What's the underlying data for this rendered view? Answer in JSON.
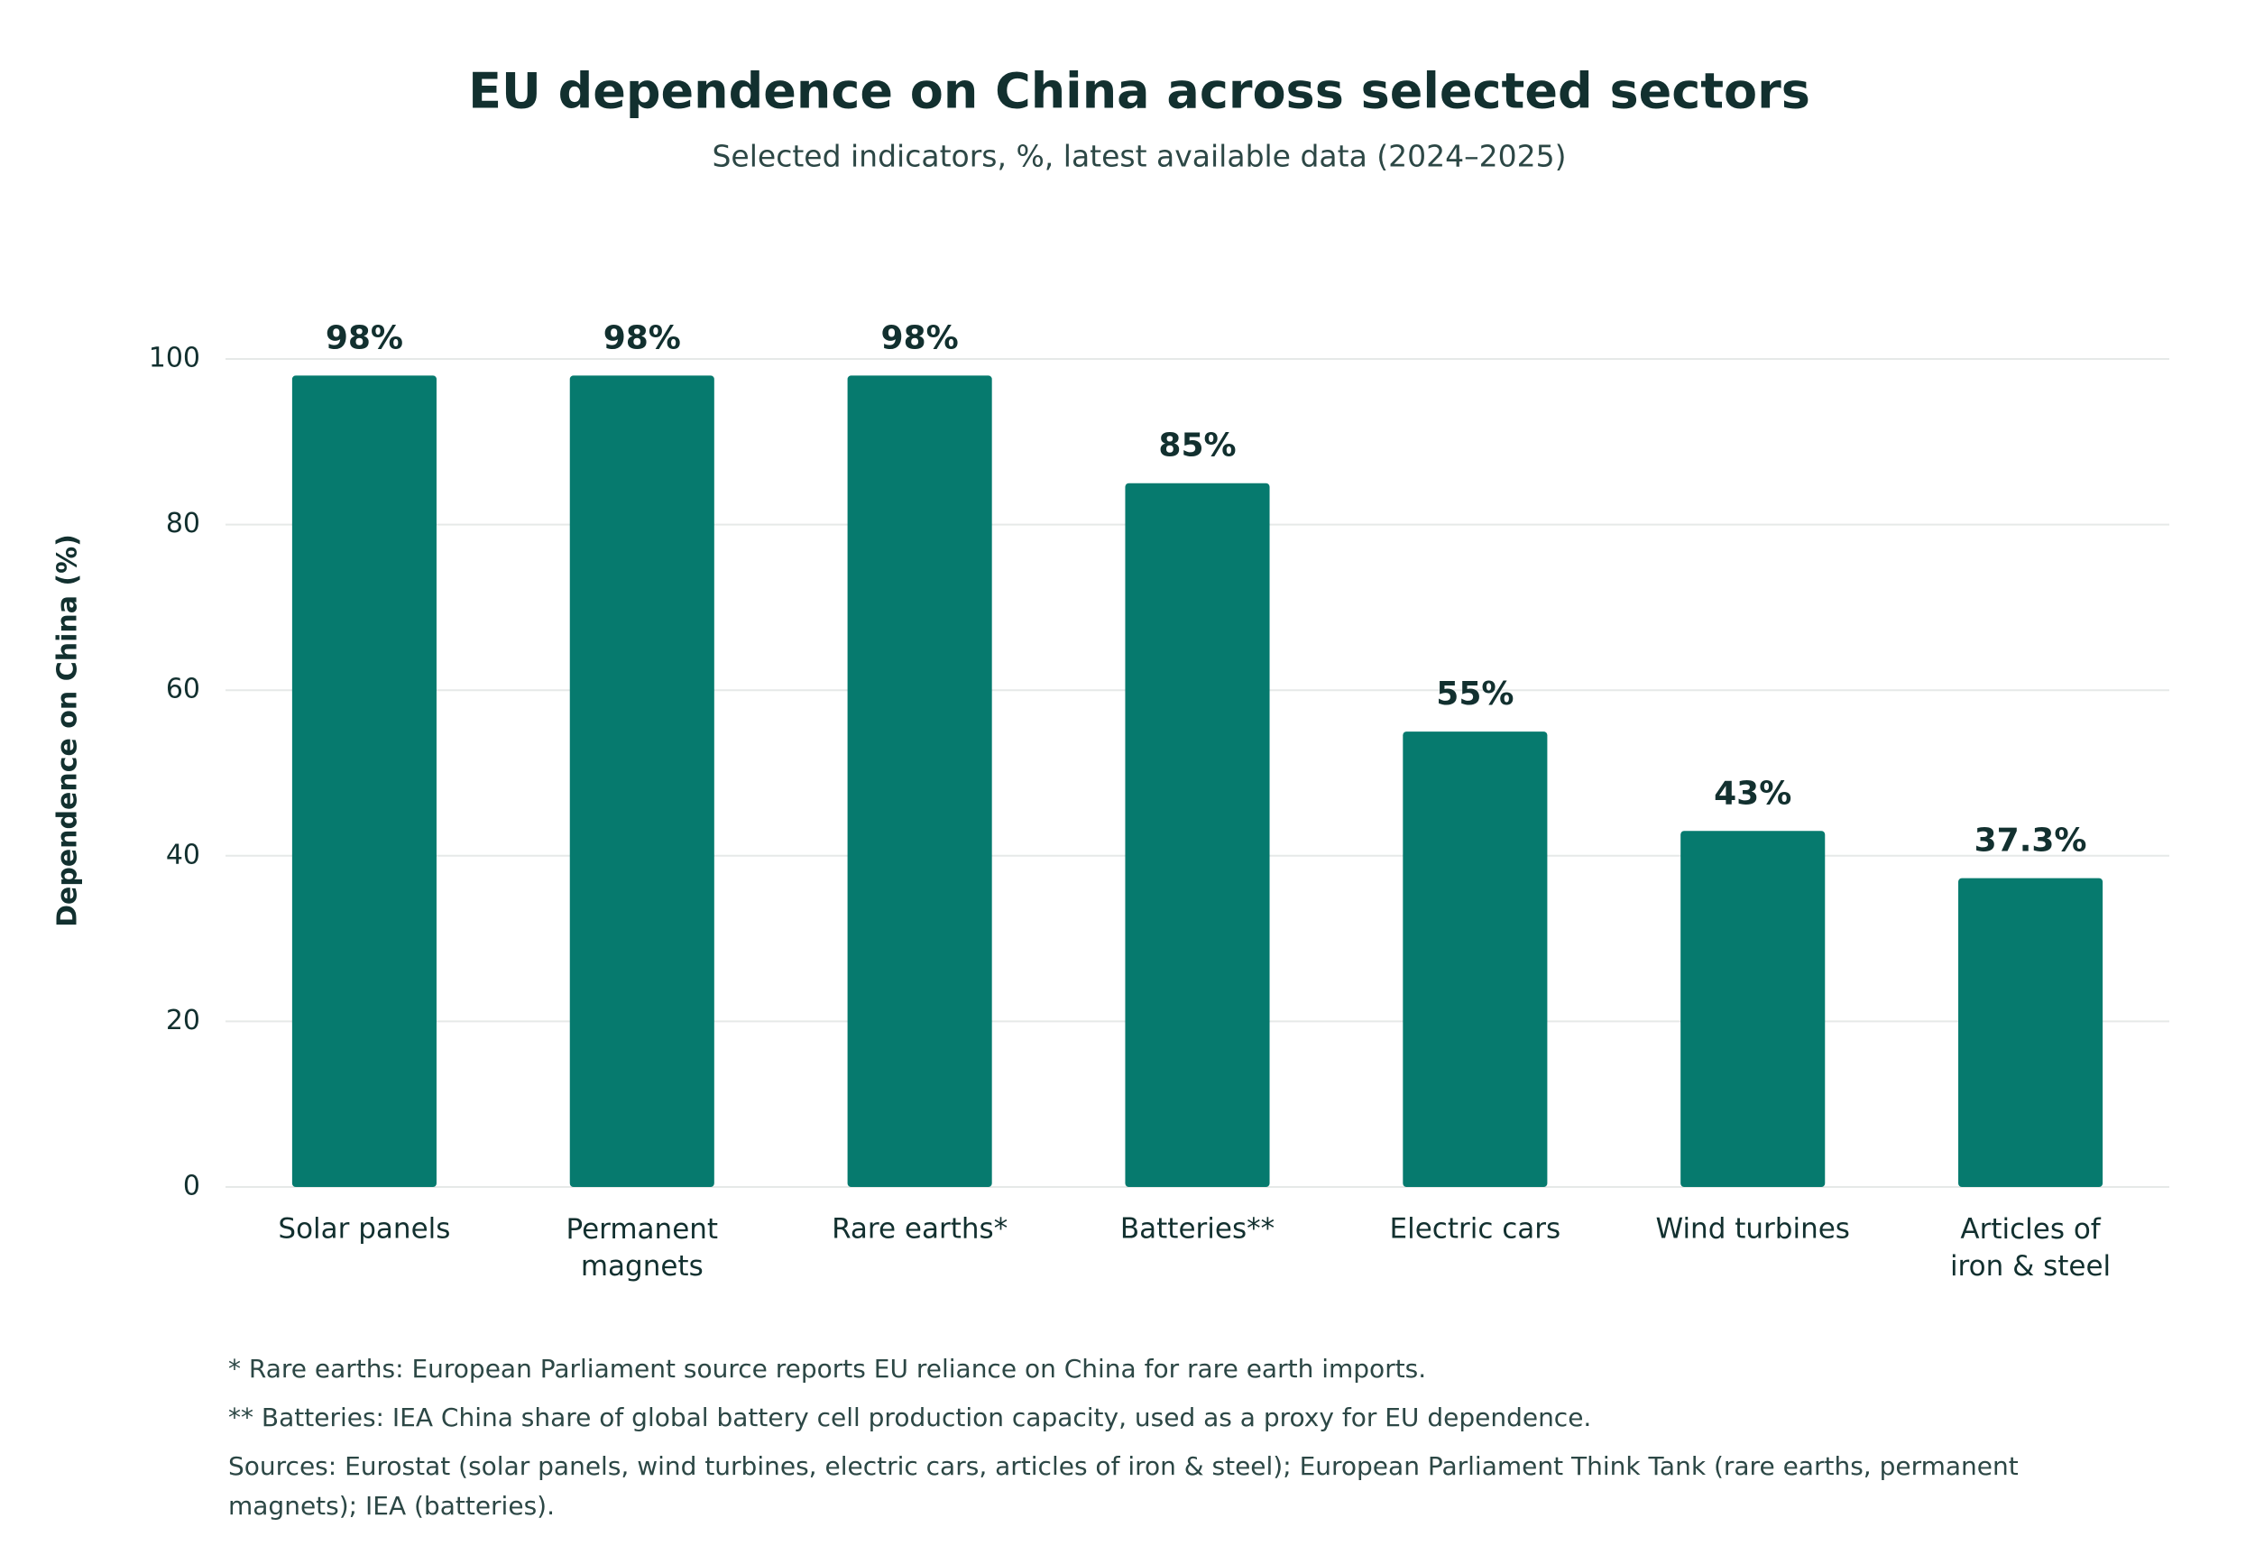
{
  "chart_data": {
    "type": "bar",
    "title": "EU dependence on China across selected sectors",
    "subtitle": "Selected indicators, %, latest available data (2024–2025)",
    "y_label": "Dependence on China (%)",
    "categories": [
      "Solar panels",
      "Permanent\nmagnets",
      "Rare earths*",
      "Batteries**",
      "Electric cars",
      "Wind turbines",
      "Articles of\niron & steel"
    ],
    "values": [
      98,
      98,
      98,
      85,
      55,
      43,
      37.3
    ],
    "value_labels": [
      "98%",
      "98%",
      "98%",
      "85%",
      "55%",
      "43%",
      "37.3%"
    ],
    "color": "#067a6e",
    "ylim": [
      0,
      100
    ],
    "yticks": [
      0,
      20,
      40,
      60,
      80,
      100
    ],
    "grid": true,
    "footnotes": [
      "* Rare earths: European Parliament source reports EU reliance on China for rare earth imports.",
      "** Batteries: IEA China share of global battery cell production capacity, used as a proxy for EU dependence.",
      "Sources: Eurostat (solar panels, wind turbines, electric cars, articles of iron & steel); European Parliament Think Tank (rare earths, permanent magnets); IEA (batteries)."
    ]
  }
}
